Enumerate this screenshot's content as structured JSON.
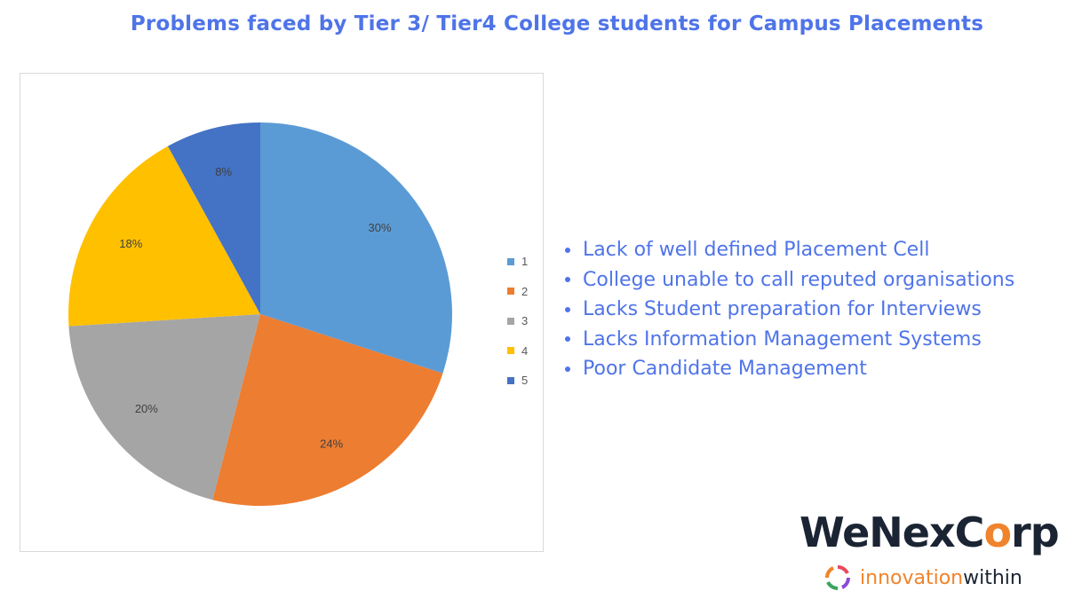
{
  "title": "Problems faced by Tier 3/ Tier4 College students for Campus Placements",
  "chart_data": {
    "type": "pie",
    "categories": [
      "1",
      "2",
      "3",
      "4",
      "5"
    ],
    "values": [
      30,
      24,
      20,
      18,
      8
    ],
    "value_labels": [
      "30%",
      "24%",
      "20%",
      "18%",
      "8%"
    ],
    "colors": [
      "#5b9bd5",
      "#ed7d31",
      "#a5a5a5",
      "#ffc000",
      "#4472c4"
    ],
    "legend_position": "right",
    "start_angle_deg": 0,
    "direction": "clockwise"
  },
  "reasons": [
    "Lack of well defined Placement Cell",
    "College unable to call reputed organisations",
    "Lacks Student preparation for Interviews",
    "Lacks Information Management Systems",
    "Poor Candidate Management"
  ],
  "logo": {
    "part1": "WeNexC",
    "part2": "o",
    "part3": "rp"
  },
  "tagline": {
    "part1": "i",
    "part2": "nnovation",
    "part3": " within"
  },
  "icons": {
    "tagline_icon": "arrows-cycle-icon"
  }
}
